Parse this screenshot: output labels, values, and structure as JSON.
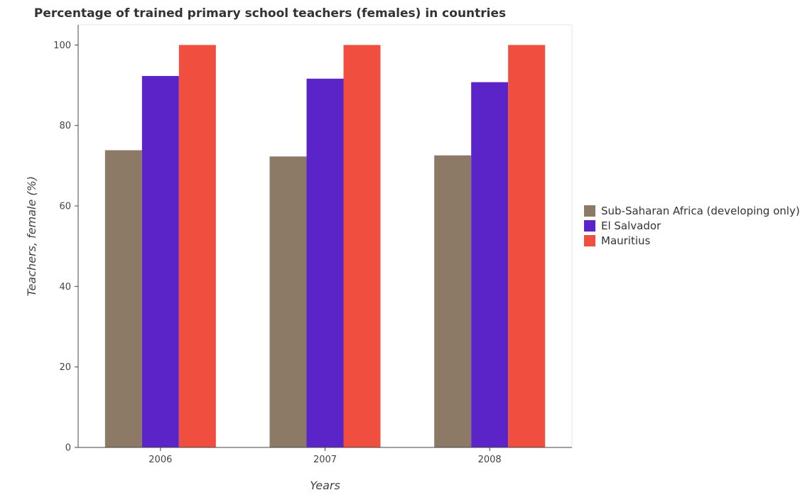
{
  "title": "Percentage of trained primary school teachers (females) in countries",
  "chart_data": {
    "type": "bar",
    "title": "Percentage of trained primary school teachers (females) in countries",
    "xlabel": "Years",
    "ylabel": "Teachers, female (%)",
    "categories": [
      "2006",
      "2007",
      "2008"
    ],
    "ylim": [
      0,
      105
    ],
    "yticks": [
      0,
      20,
      40,
      60,
      80,
      100
    ],
    "grid": false,
    "legend_position": "right",
    "series": [
      {
        "name": "Sub-Saharan Africa (developing only)",
        "color": "#8c7a67",
        "values": [
          73.85,
          72.3,
          72.57
        ]
      },
      {
        "name": "El Salvador",
        "color": "#5b24c8",
        "values": [
          92.3,
          91.63,
          90.76
        ]
      },
      {
        "name": "Mauritius",
        "color": "#f04e3e",
        "values": [
          100,
          100,
          100
        ]
      }
    ]
  }
}
